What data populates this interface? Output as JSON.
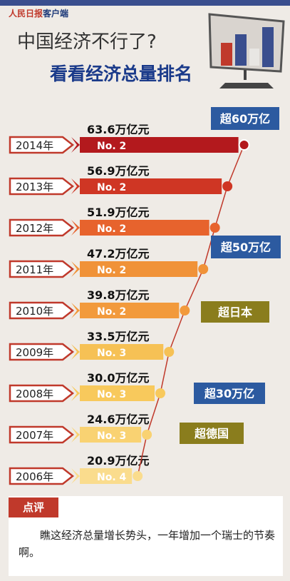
{
  "header": {
    "logo_main": "人民日报",
    "logo_sub": "客户端",
    "title": "中国经济不行了?",
    "subtitle": "看看经济总量排名"
  },
  "chart_data": {
    "type": "bar",
    "categories": [
      "2014年",
      "2013年",
      "2012年",
      "2011年",
      "2010年",
      "2009年",
      "2008年",
      "2007年",
      "2006年"
    ],
    "values": [
      63.6,
      56.9,
      51.9,
      47.2,
      39.8,
      33.5,
      30.0,
      24.6,
      20.9
    ],
    "value_labels": [
      "63.6万亿元",
      "56.9万亿元",
      "51.9万亿元",
      "47.2万亿元",
      "39.8万亿元",
      "33.5万亿元",
      "30.0万亿元",
      "24.6万亿元",
      "20.9万亿元"
    ],
    "ranks": [
      "No. 2",
      "No. 2",
      "No. 2",
      "No. 2",
      "No. 2",
      "No. 3",
      "No. 3",
      "No. 3",
      "No. 4"
    ],
    "bar_colors": [
      "#b3191d",
      "#cf3624",
      "#e7632d",
      "#f09238",
      "#f29a3c",
      "#f6c155",
      "#f8c95c",
      "#f9d272",
      "#fadc8d"
    ],
    "callouts": [
      {
        "text": "超60万亿",
        "color": "#2c5aa0"
      },
      {
        "text": "超50万亿",
        "color": "#2c5aa0"
      },
      {
        "text": "超日本",
        "color": "#8a7d1d"
      },
      {
        "text": "超30万亿",
        "color": "#2c5aa0"
      },
      {
        "text": "超德国",
        "color": "#8a7d1d"
      }
    ]
  },
  "comment": {
    "label": "点评",
    "text": "瞧这经济总量增长势头，一年增加一个瑞士的节奏啊。"
  }
}
